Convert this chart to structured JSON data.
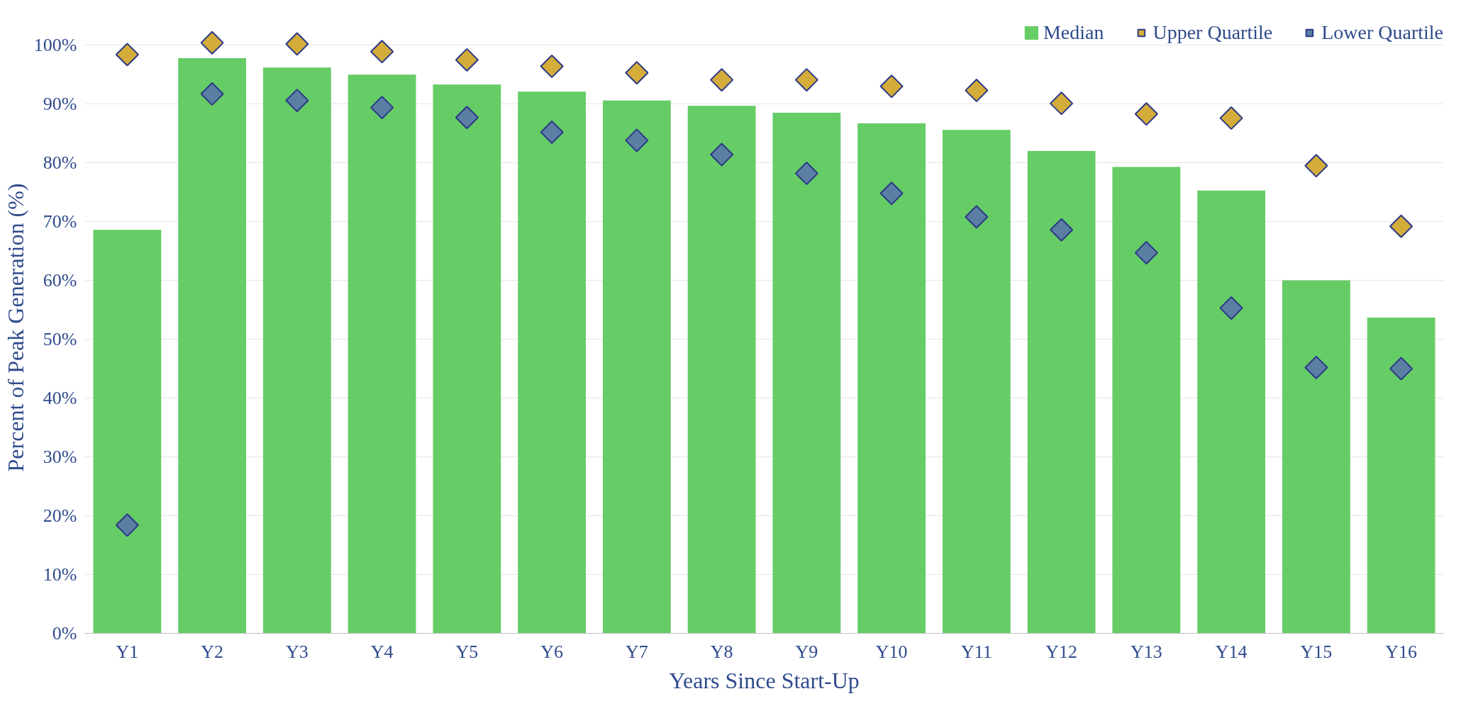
{
  "chart_data": {
    "type": "bar",
    "xlabel": "Years Since Start-Up",
    "ylabel": "Percent of Peak Generation (%)",
    "categories": [
      "Y1",
      "Y2",
      "Y3",
      "Y4",
      "Y5",
      "Y6",
      "Y7",
      "Y8",
      "Y9",
      "Y10",
      "Y11",
      "Y12",
      "Y13",
      "Y14",
      "Y15",
      "Y16"
    ],
    "series": [
      {
        "name": "Median",
        "color": "#66cc66",
        "values": [
          68.6,
          97.8,
          96.2,
          95.0,
          93.3,
          92.1,
          90.6,
          89.7,
          88.5,
          86.7,
          85.6,
          82.0,
          79.3,
          75.3,
          60.0,
          53.7
        ]
      },
      {
        "name": "Upper Quartile",
        "type": "scatter",
        "marker": "diamond",
        "color": "#d4ac3a",
        "values": [
          98.4,
          100.4,
          100.2,
          98.9,
          97.5,
          96.4,
          95.3,
          94.1,
          94.1,
          93.0,
          92.3,
          90.1,
          88.3,
          87.6,
          79.5,
          69.2
        ]
      },
      {
        "name": "Lower Quartile",
        "type": "scatter",
        "marker": "diamond",
        "color": "#5a7fa3",
        "values": [
          18.4,
          91.7,
          90.6,
          89.4,
          87.7,
          85.2,
          83.8,
          81.4,
          78.2,
          74.8,
          70.8,
          68.6,
          64.7,
          55.3,
          45.2,
          45.0
        ]
      }
    ],
    "ylim": [
      0,
      104
    ],
    "yticks": [
      {
        "value": 0,
        "label": "0%"
      },
      {
        "value": 10,
        "label": "10%"
      },
      {
        "value": 20,
        "label": "20%"
      },
      {
        "value": 30,
        "label": "30%"
      },
      {
        "value": 40,
        "label": "40%"
      },
      {
        "value": 50,
        "label": "50%"
      },
      {
        "value": 60,
        "label": "60%"
      },
      {
        "value": 70,
        "label": "70%"
      },
      {
        "value": 80,
        "label": "80%"
      },
      {
        "value": 90,
        "label": "90%"
      },
      {
        "value": 100,
        "label": "100%"
      }
    ],
    "grid": "y",
    "legend": "top right"
  }
}
